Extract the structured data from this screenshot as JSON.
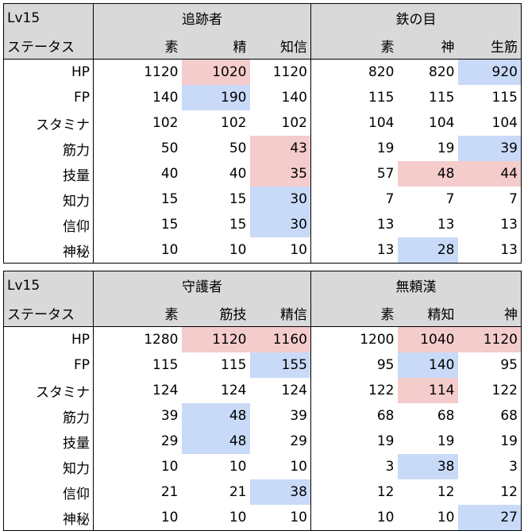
{
  "tables": [
    {
      "level": "Lv15",
      "status_header": "ステータス",
      "classes": [
        {
          "name": "追跡者",
          "columns": [
            "素",
            "精",
            "知信"
          ]
        },
        {
          "name": "鉄の目",
          "columns": [
            "素",
            "神",
            "生筋"
          ]
        }
      ],
      "rows": [
        {
          "label": "HP",
          "values": [
            "1120",
            "1020",
            "1120",
            "820",
            "820",
            "920"
          ],
          "hl": [
            "",
            "red",
            "",
            "",
            "",
            "blue"
          ]
        },
        {
          "label": "FP",
          "values": [
            "140",
            "190",
            "140",
            "115",
            "115",
            "115"
          ],
          "hl": [
            "",
            "blue",
            "",
            "",
            "",
            ""
          ]
        },
        {
          "label": "スタミナ",
          "values": [
            "102",
            "102",
            "102",
            "104",
            "104",
            "104"
          ],
          "hl": [
            "",
            "",
            "",
            "",
            "",
            ""
          ]
        },
        {
          "label": "筋力",
          "values": [
            "50",
            "50",
            "43",
            "19",
            "19",
            "39"
          ],
          "hl": [
            "",
            "",
            "red",
            "",
            "",
            "blue"
          ]
        },
        {
          "label": "技量",
          "values": [
            "40",
            "40",
            "35",
            "57",
            "48",
            "44"
          ],
          "hl": [
            "",
            "",
            "red",
            "",
            "red",
            "red"
          ]
        },
        {
          "label": "知力",
          "values": [
            "15",
            "15",
            "30",
            "7",
            "7",
            "7"
          ],
          "hl": [
            "",
            "",
            "blue",
            "",
            "",
            ""
          ]
        },
        {
          "label": "信仰",
          "values": [
            "15",
            "15",
            "30",
            "13",
            "13",
            "13"
          ],
          "hl": [
            "",
            "",
            "blue",
            "",
            "",
            ""
          ]
        },
        {
          "label": "神秘",
          "values": [
            "10",
            "10",
            "10",
            "13",
            "28",
            "13"
          ],
          "hl": [
            "",
            "",
            "",
            "",
            "blue",
            ""
          ]
        }
      ]
    },
    {
      "level": "Lv15",
      "status_header": "ステータス",
      "classes": [
        {
          "name": "守護者",
          "columns": [
            "素",
            "筋技",
            "精信"
          ]
        },
        {
          "name": "無頼漢",
          "columns": [
            "素",
            "精知",
            "神"
          ]
        }
      ],
      "rows": [
        {
          "label": "HP",
          "values": [
            "1280",
            "1120",
            "1160",
            "1200",
            "1040",
            "1120"
          ],
          "hl": [
            "",
            "red",
            "red",
            "",
            "red",
            "red"
          ]
        },
        {
          "label": "FP",
          "values": [
            "115",
            "115",
            "155",
            "95",
            "140",
            "95"
          ],
          "hl": [
            "",
            "",
            "blue",
            "",
            "blue",
            ""
          ]
        },
        {
          "label": "スタミナ",
          "values": [
            "124",
            "124",
            "124",
            "122",
            "114",
            "122"
          ],
          "hl": [
            "",
            "",
            "",
            "",
            "red",
            ""
          ]
        },
        {
          "label": "筋力",
          "values": [
            "39",
            "48",
            "39",
            "68",
            "68",
            "68"
          ],
          "hl": [
            "",
            "blue",
            "",
            "",
            "",
            ""
          ]
        },
        {
          "label": "技量",
          "values": [
            "29",
            "48",
            "29",
            "19",
            "19",
            "19"
          ],
          "hl": [
            "",
            "blue",
            "",
            "",
            "",
            ""
          ]
        },
        {
          "label": "知力",
          "values": [
            "10",
            "10",
            "10",
            "3",
            "38",
            "3"
          ],
          "hl": [
            "",
            "",
            "",
            "",
            "blue",
            ""
          ]
        },
        {
          "label": "信仰",
          "values": [
            "21",
            "21",
            "38",
            "12",
            "12",
            "12"
          ],
          "hl": [
            "",
            "",
            "blue",
            "",
            "",
            ""
          ]
        },
        {
          "label": "神秘",
          "values": [
            "10",
            "10",
            "10",
            "10",
            "10",
            "27"
          ],
          "hl": [
            "",
            "",
            "",
            "",
            "",
            "blue"
          ]
        }
      ]
    }
  ],
  "colors": {
    "header_background": "#d9d9d9",
    "highlight_red": "#f4cccc",
    "highlight_blue": "#c9daf8",
    "border": "#000000"
  }
}
